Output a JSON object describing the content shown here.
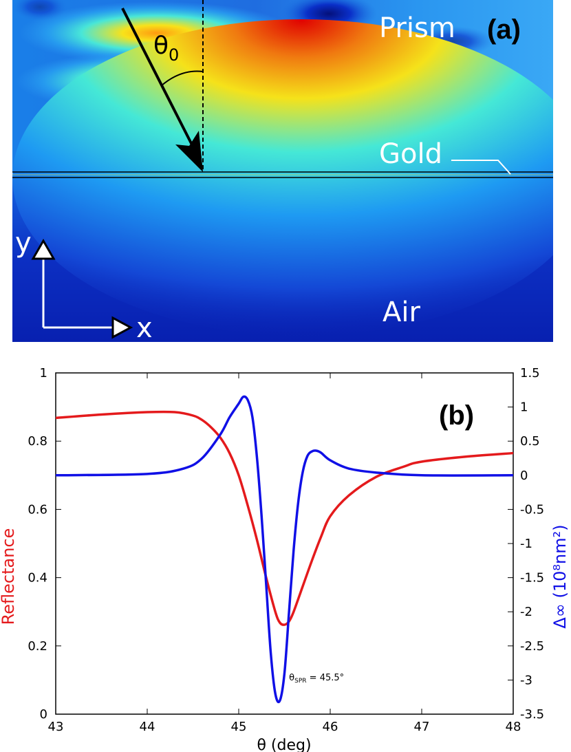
{
  "panel_a": {
    "panel_label": "(a)",
    "region_labels": {
      "prism": "Prism",
      "gold": "Gold",
      "air": "Air"
    },
    "angle_label": "θ",
    "angle_subscript": "0",
    "axis_labels": {
      "y": "y",
      "x": "x"
    },
    "colors": {
      "low": "#0a1fb4",
      "mid": "#1e90ff",
      "cyan": "#38e0e8",
      "yellow": "#f5e21a",
      "orange": "#f08a14",
      "high": "#e00000"
    }
  },
  "chart_data": {
    "type": "line",
    "panel_label": "(b)",
    "xlabel": "θ (deg)",
    "ylabel_left": "Reflectance",
    "ylabel_right": "Δ∞ (10⁸nm²)",
    "xlim": [
      43,
      48
    ],
    "ylim_left": [
      0,
      1
    ],
    "ylim_right": [
      -3.5,
      1.5
    ],
    "x_ticks": [
      "43",
      "44",
      "45",
      "46",
      "47",
      "48"
    ],
    "y_ticks_left": [
      "0",
      "0.2",
      "0.4",
      "0.6",
      "0.8",
      "1"
    ],
    "y_ticks_right": [
      "1.5",
      "1",
      "0.5",
      "0",
      "-0.5",
      "-1",
      "-1.5",
      "-2",
      "-2.5",
      "-3",
      "-3.5"
    ],
    "annotation": {
      "text_main": "θ",
      "text_sub": "SPR",
      "text_rest": " = 45.5°",
      "x": 45.52,
      "y": 0.26
    },
    "grid": false,
    "series": [
      {
        "axis": "left",
        "color": "#e41a1c",
        "x": [
          43.0,
          43.5,
          44.0,
          44.3,
          44.5,
          44.6,
          44.7,
          44.8,
          44.9,
          45.0,
          45.1,
          45.2,
          45.3,
          45.4,
          45.45,
          45.5,
          45.55,
          45.6,
          45.7,
          45.8,
          45.9,
          46.0,
          46.2,
          46.5,
          46.8,
          47.0,
          47.5,
          48.0
        ],
        "y": [
          0.868,
          0.878,
          0.885,
          0.885,
          0.875,
          0.862,
          0.84,
          0.81,
          0.765,
          0.7,
          0.61,
          0.51,
          0.4,
          0.3,
          0.268,
          0.262,
          0.272,
          0.3,
          0.375,
          0.45,
          0.52,
          0.58,
          0.64,
          0.695,
          0.725,
          0.74,
          0.755,
          0.765
        ]
      },
      {
        "axis": "right",
        "color": "#1010e6",
        "x": [
          43.0,
          44.0,
          44.4,
          44.6,
          44.8,
          44.9,
          45.0,
          45.05,
          45.1,
          45.15,
          45.2,
          45.25,
          45.3,
          45.35,
          45.4,
          45.45,
          45.5,
          45.55,
          45.6,
          45.65,
          45.7,
          45.75,
          45.8,
          45.85,
          45.9,
          46.0,
          46.2,
          46.5,
          47.0,
          48.0
        ],
        "y": [
          0.0,
          0.02,
          0.1,
          0.25,
          0.6,
          0.85,
          1.05,
          1.15,
          1.1,
          0.85,
          0.25,
          -0.6,
          -1.6,
          -2.6,
          -3.2,
          -3.3,
          -2.9,
          -2.0,
          -1.1,
          -0.4,
          0.05,
          0.28,
          0.35,
          0.36,
          0.33,
          0.22,
          0.1,
          0.04,
          0.0,
          0.0
        ]
      }
    ]
  }
}
